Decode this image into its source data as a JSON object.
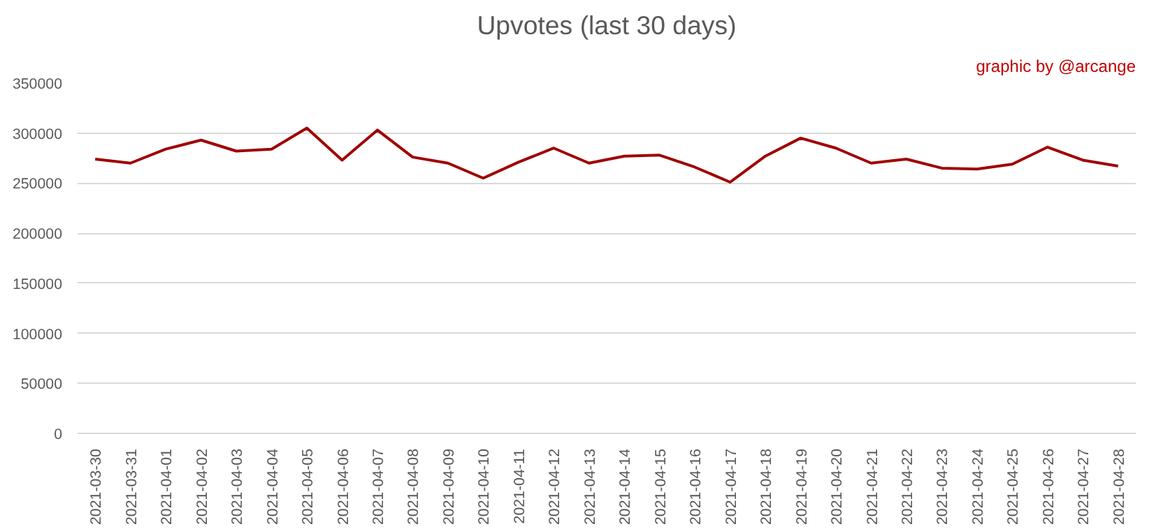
{
  "chart_data": {
    "type": "line",
    "title": "Upvotes (last 30 days)",
    "annotations": [
      "graphic by @arcange"
    ],
    "categories": [
      "2021-03-30",
      "2021-03-31",
      "2021-04-01",
      "2021-04-02",
      "2021-04-03",
      "2021-04-04",
      "2021-04-05",
      "2021-04-06",
      "2021-04-07",
      "2021-04-08",
      "2021-04-09",
      "2021-04-10",
      "2021-04-11",
      "2021-04-12",
      "2021-04-13",
      "2021-04-14",
      "2021-04-15",
      "2021-04-16",
      "2021-04-17",
      "2021-04-18",
      "2021-04-19",
      "2021-04-20",
      "2021-04-21",
      "2021-04-22",
      "2021-04-23",
      "2021-04-24",
      "2021-04-25",
      "2021-04-26",
      "2021-04-27",
      "2021-04-28"
    ],
    "series": [
      {
        "color": "#a00000",
        "values": [
          274000,
          270000,
          284000,
          293000,
          282000,
          284000,
          305000,
          273000,
          303000,
          276000,
          270000,
          255000,
          271000,
          285000,
          270000,
          277000,
          278000,
          266000,
          251000,
          277000,
          295000,
          285000,
          270000,
          274000,
          265000,
          264000,
          269000,
          286000,
          273000,
          267000
        ]
      }
    ],
    "ylim": [
      0,
      350000
    ],
    "yticks": [
      0,
      50000,
      100000,
      150000,
      200000,
      250000,
      300000,
      350000
    ],
    "grid": "y",
    "marker": "none",
    "line_style": "solid"
  }
}
